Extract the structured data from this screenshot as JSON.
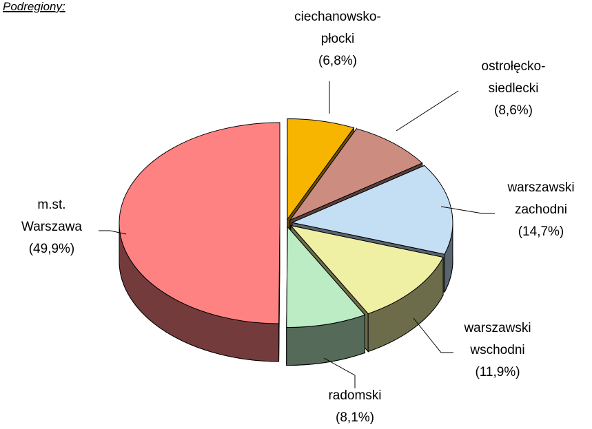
{
  "chart_data": {
    "type": "pie3d",
    "title": "Podregiony:",
    "categories": [
      "ciechanowsko-płocki",
      "ostrołęcko-siedlecki",
      "warszawski zachodni",
      "warszawski wschodni",
      "radomski",
      "m.st. Warszawa"
    ],
    "values": [
      6.8,
      8.6,
      14.7,
      11.9,
      8.1,
      49.9
    ],
    "value_labels": [
      "(6,8%)",
      "(8,6%)",
      "(14,7%)",
      "(11,9%)",
      "(8,1%)",
      "(49,9%)"
    ],
    "colors": [
      "#f7b500",
      "#cc8d80",
      "#c4def4",
      "#f0f0a4",
      "#bcecc4",
      "#ff8282"
    ]
  }
}
